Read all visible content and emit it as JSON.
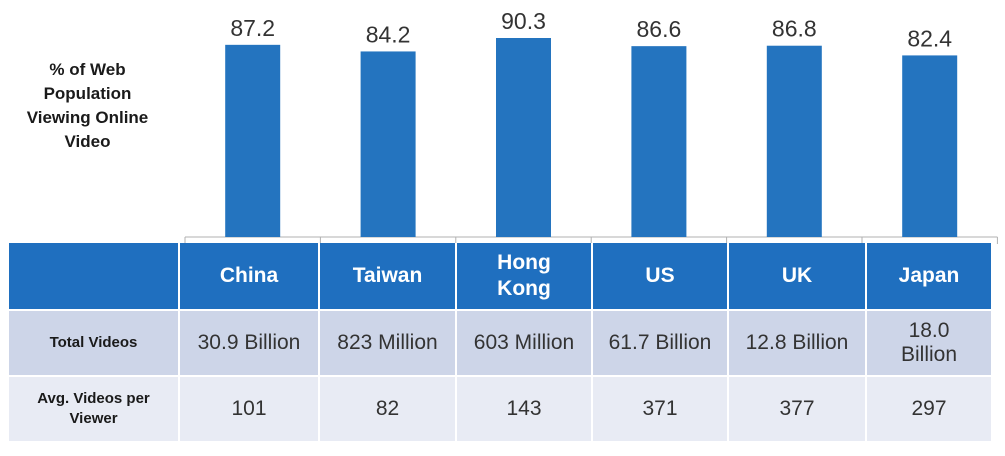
{
  "chart_data": {
    "type": "bar",
    "ylabel": "% of Web Population Viewing Online Video",
    "categories": [
      "China",
      "Taiwan",
      "Hong Kong",
      "US",
      "UK",
      "Japan"
    ],
    "values": [
      87.2,
      84.2,
      90.3,
      86.6,
      86.8,
      82.4
    ],
    "value_labels": [
      "87.2",
      "84.2",
      "90.3",
      "86.6",
      "86.8",
      "82.4"
    ],
    "ylim": [
      0,
      90.3
    ],
    "bar_color": "#2474bf",
    "header_color": "#1f6fbf",
    "grid": false,
    "table": {
      "rows": [
        {
          "label": "Total Videos",
          "cells": [
            "30.9 Billion",
            "823 Million",
            "603 Million",
            "61.7 Billion",
            "12.8 Billion",
            "18.0 Billion"
          ]
        },
        {
          "label": "Avg. Videos per Viewer",
          "cells": [
            "101",
            "82",
            "143",
            "371",
            "377",
            "297"
          ]
        }
      ]
    }
  }
}
